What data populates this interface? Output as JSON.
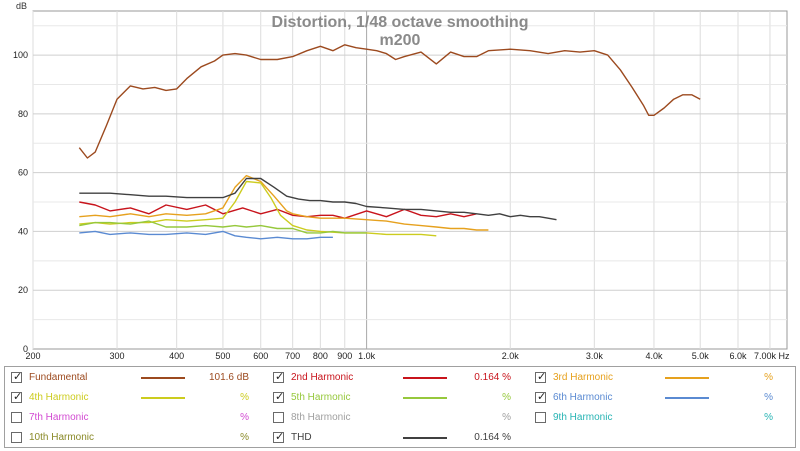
{
  "chart_data": {
    "type": "line",
    "title": "Distortion, 1/48 octave smoothing",
    "subtitle": "m200",
    "y_unit_label": "dB",
    "x_unit_label": "Hz",
    "x_scale": "log",
    "xlim": [
      200,
      7600
    ],
    "ylim": [
      0,
      115
    ],
    "grid": true,
    "x_ticks": [
      200,
      300,
      400,
      500,
      600,
      700,
      800,
      900,
      1000,
      2000,
      3000,
      4000,
      5000,
      6000,
      7000
    ],
    "x_tick_labels": [
      "200",
      "300",
      "400",
      "500",
      "600",
      "700",
      "800",
      "900",
      "1.0k",
      "2.0k",
      "3.0k",
      "4.0k",
      "5.0k",
      "6.0k",
      "7.00k Hz"
    ],
    "y_ticks": [
      0,
      20,
      40,
      60,
      80,
      100
    ],
    "y_tick_labels": [
      "0",
      "20",
      "40",
      "60",
      "80",
      "100"
    ],
    "series": [
      {
        "name": "Fundamental",
        "color": "#9c4a1f",
        "x": [
          250,
          260,
          270,
          285,
          300,
          320,
          340,
          360,
          380,
          400,
          420,
          450,
          480,
          500,
          530,
          560,
          600,
          650,
          700,
          750,
          800,
          850,
          900,
          950,
          1000,
          1050,
          1100,
          1150,
          1200,
          1300,
          1400,
          1500,
          1600,
          1700,
          1800,
          2000,
          2200,
          2400,
          2600,
          2800,
          3000,
          3200,
          3400,
          3600,
          3800,
          3900,
          4000,
          4200,
          4400,
          4600,
          4800,
          5000
        ],
        "y": [
          68.5,
          65,
          67,
          76,
          85,
          89.5,
          88.5,
          89,
          88,
          88.5,
          92,
          96,
          98,
          100,
          100.5,
          100,
          98.5,
          98.5,
          99.5,
          101.5,
          103,
          101.5,
          103.5,
          102.5,
          102,
          101.5,
          100.5,
          98.5,
          99.5,
          101,
          97,
          101,
          99.5,
          99.5,
          101.5,
          102,
          101.5,
          100.5,
          101.5,
          101,
          101.5,
          100,
          95,
          89,
          83,
          79.5,
          79.5,
          82,
          85,
          86.5,
          86.5,
          85
        ]
      },
      {
        "name": "2nd Harmonic",
        "color": "#c8141c",
        "x": [
          250,
          270,
          290,
          320,
          350,
          380,
          420,
          460,
          500,
          550,
          600,
          650,
          700,
          750,
          800,
          850,
          900,
          1000,
          1100,
          1200,
          1300,
          1400,
          1500,
          1600,
          1700
        ],
        "y": [
          50,
          49,
          47,
          48,
          46,
          49,
          47.5,
          49,
          46,
          48,
          46,
          47.5,
          45.5,
          45,
          45.5,
          45.5,
          44.5,
          47,
          45,
          47.5,
          45.5,
          45,
          46,
          45,
          46
        ]
      },
      {
        "name": "3rd Harmonic",
        "color": "#e6a11e",
        "x": [
          250,
          270,
          290,
          320,
          350,
          380,
          420,
          460,
          500,
          530,
          560,
          600,
          640,
          680,
          700,
          750,
          800,
          900,
          1000,
          1100,
          1200,
          1300,
          1400,
          1500,
          1600,
          1700,
          1800
        ],
        "y": [
          45,
          45.5,
          45,
          46,
          45,
          46,
          45.5,
          46,
          48,
          55,
          59,
          57,
          52,
          47,
          46,
          45,
          44.5,
          44.5,
          44,
          43.5,
          42.5,
          42,
          41.5,
          41,
          41,
          40.5,
          40.5
        ]
      },
      {
        "name": "4th Harmonic",
        "color": "#cccc1e",
        "x": [
          250,
          270,
          290,
          320,
          350,
          380,
          420,
          460,
          500,
          530,
          560,
          600,
          630,
          660,
          700,
          750,
          800,
          900,
          1000,
          1100,
          1200,
          1300,
          1400
        ],
        "y": [
          42.5,
          43,
          42.5,
          43,
          43,
          44,
          43.5,
          44,
          44.5,
          50,
          57,
          56.5,
          51.5,
          45.5,
          42,
          40.5,
          40,
          39.5,
          39.5,
          39,
          39,
          39,
          38.5
        ]
      },
      {
        "name": "5th Harmonic",
        "color": "#96c83c",
        "x": [
          250,
          270,
          290,
          320,
          350,
          380,
          420,
          460,
          500,
          530,
          560,
          600,
          650,
          700,
          750,
          800,
          850,
          900,
          950,
          1000
        ],
        "y": [
          42,
          43,
          43,
          42.5,
          43.5,
          41.5,
          41.5,
          42,
          41.5,
          42,
          41.5,
          42,
          41,
          41,
          39.5,
          39.5,
          40,
          39.5,
          39.5,
          39.5
        ]
      },
      {
        "name": "6th Harmonic",
        "color": "#5a8ad2",
        "x": [
          250,
          270,
          290,
          320,
          350,
          380,
          420,
          460,
          500,
          530,
          560,
          600,
          650,
          700,
          750,
          800,
          850
        ],
        "y": [
          39.5,
          40,
          39,
          39.5,
          39,
          39,
          39.5,
          39,
          40,
          38.5,
          38,
          37.5,
          38,
          37.5,
          37.5,
          38,
          38
        ]
      },
      {
        "name": "THD",
        "color": "#404040",
        "x": [
          250,
          270,
          290,
          320,
          350,
          380,
          420,
          460,
          500,
          530,
          560,
          600,
          640,
          680,
          720,
          760,
          800,
          850,
          900,
          950,
          1000,
          1100,
          1200,
          1300,
          1400,
          1500,
          1600,
          1700,
          1800,
          1900,
          2000,
          2100,
          2200,
          2300,
          2400,
          2500
        ],
        "y": [
          53,
          53,
          53,
          52.5,
          52,
          52,
          51.5,
          51.5,
          51.5,
          53,
          58,
          58,
          55,
          52,
          51,
          50.5,
          50.5,
          50,
          50,
          49.5,
          48.5,
          48,
          47.5,
          47.5,
          47,
          46.5,
          46.5,
          46,
          45.5,
          46,
          45,
          45.5,
          45,
          45,
          44.5,
          44
        ]
      }
    ]
  },
  "legend": {
    "items": [
      {
        "label": "Fundamental",
        "checked": true,
        "color": "#9c4a1f",
        "line": true,
        "value": "101.6 dB"
      },
      {
        "label": "2nd Harmonic",
        "checked": true,
        "color": "#c8141c",
        "line": true,
        "value": "0.164 %"
      },
      {
        "label": "3rd Harmonic",
        "checked": true,
        "color": "#e6a11e",
        "line": true,
        "value": "%"
      },
      {
        "label": "4th Harmonic",
        "checked": true,
        "color": "#cccc1e",
        "line": true,
        "value": "%"
      },
      {
        "label": "5th Harmonic",
        "checked": true,
        "color": "#96c83c",
        "line": true,
        "value": "%"
      },
      {
        "label": "6th Harmonic",
        "checked": true,
        "color": "#5a8ad2",
        "line": true,
        "value": "%"
      },
      {
        "label": "7th Harmonic",
        "checked": false,
        "color": "#d24ad2",
        "line": false,
        "value": "%"
      },
      {
        "label": "8th Harmonic",
        "checked": false,
        "color": "#a0a0a0",
        "line": false,
        "value": "%"
      },
      {
        "label": "9th Harmonic",
        "checked": false,
        "color": "#28b4b4",
        "line": false,
        "value": "%"
      },
      {
        "label": "10th Harmonic",
        "checked": false,
        "color": "#8a8a28",
        "line": false,
        "value": "%"
      },
      {
        "label": "THD",
        "checked": true,
        "color": "#404040",
        "line": true,
        "value": "0.164 %"
      }
    ]
  }
}
